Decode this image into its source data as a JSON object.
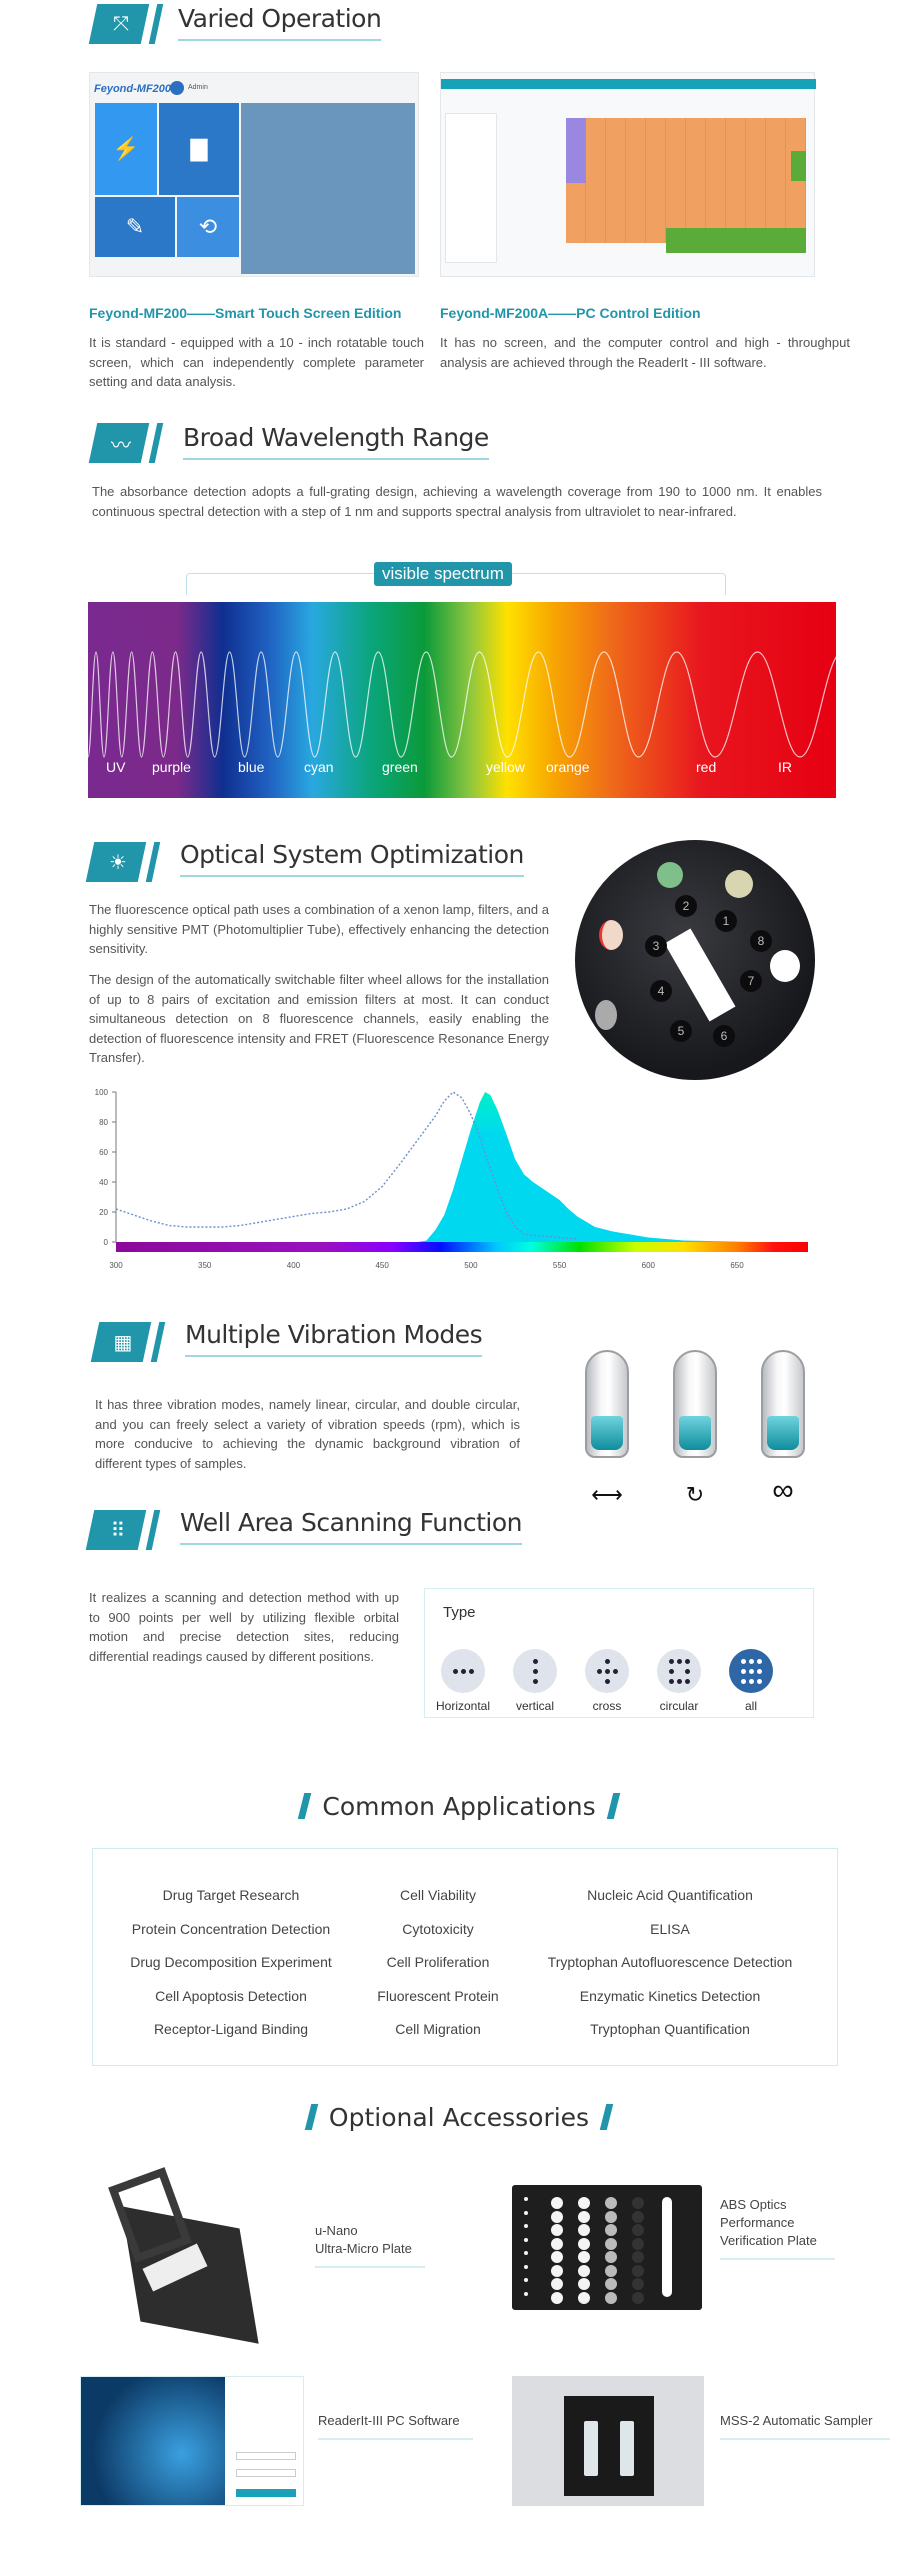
{
  "varied_operation": {
    "title": "Varied Operation",
    "icon": "expand-arrows-icon",
    "touch_screen": {
      "brand": "Feyond-MF200",
      "user": "Admin",
      "caption": "Feyond-MF200——Smart Touch Screen Edition",
      "description": "It is standard - equipped with a 10 - inch rotatable touch screen, which can independently complete parameter setting and data analysis."
    },
    "pc_control": {
      "caption": "Feyond-MF200A——PC Control Edition",
      "description": "It has no screen, and the computer control and high - throughput analysis are achieved through the ReaderIt - III software."
    }
  },
  "wavelength": {
    "title": "Broad Wavelength Range",
    "icon": "wave-icon",
    "description": "The absorbance detection adopts a full-grating design, achieving a wavelength coverage from 190 to 1000 nm. It enables continuous spectral detection with a step of 1 nm and supports spectral analysis from ultraviolet to near-infrared.",
    "visible_label": "visible spectrum",
    "bands": [
      "UV",
      "purple",
      "blue",
      "cyan",
      "green",
      "yellow",
      "orange",
      "red",
      "IR"
    ]
  },
  "optical": {
    "title": "Optical System Optimization",
    "icon": "lamp-icon",
    "paragraphs": [
      "The fluorescence optical path uses a combination of a xenon lamp, filters, and a highly sensitive PMT (Photomultiplier Tube), effectively enhancing the detection sensitivity.",
      "The design of the automatically switchable filter wheel allows for the installation of up to 8 pairs of excitation and emission filters at most. It can conduct simultaneous detection on 8 fluorescence channels, easily enabling the detection of fluorescence intensity and FRET (Fluorescence Resonance Energy Transfer)."
    ],
    "filter_numbers": [
      "1",
      "2",
      "3",
      "4",
      "5",
      "6",
      "7",
      "8"
    ]
  },
  "chart_data": {
    "type": "area",
    "xlim": [
      300,
      690
    ],
    "ylim": [
      0,
      100
    ],
    "xticks": [
      300,
      350,
      400,
      450,
      500,
      550,
      600,
      650
    ],
    "yticks": [
      0,
      20,
      40,
      60,
      80,
      100
    ],
    "grid": false,
    "series": [
      {
        "style": "dotted-line",
        "color": "#6a8fd0",
        "x": [
          300,
          310,
          320,
          330,
          340,
          350,
          360,
          370,
          380,
          390,
          400,
          410,
          420,
          430,
          440,
          450,
          460,
          470,
          480,
          485,
          490,
          495,
          500,
          505,
          510,
          515,
          520,
          525,
          530,
          540,
          550,
          560
        ],
        "y": [
          22,
          18,
          14,
          11,
          10,
          10,
          10,
          11,
          13,
          15,
          17,
          19,
          20,
          22,
          27,
          37,
          52,
          68,
          84,
          94,
          100,
          96,
          85,
          70,
          52,
          35,
          20,
          10,
          5,
          4,
          3,
          2
        ]
      },
      {
        "style": "filled-area",
        "color": "#00d8f0",
        "x": [
          470,
          475,
          480,
          485,
          490,
          495,
          500,
          505,
          508,
          511,
          515,
          520,
          525,
          530,
          535,
          540,
          545,
          550,
          555,
          560,
          570,
          580,
          600,
          620,
          640,
          660
        ],
        "y": [
          0,
          1,
          8,
          18,
          35,
          55,
          75,
          93,
          100,
          98,
          88,
          72,
          55,
          45,
          40,
          36,
          32,
          28,
          22,
          17,
          10,
          7,
          3,
          1,
          0.5,
          0
        ]
      }
    ]
  },
  "vibration": {
    "title": "Multiple Vibration Modes",
    "icon": "shaking-plate-icon",
    "description": "It has three vibration modes, namely linear, circular, and double circular, and you can freely select a variety of vibration speeds (rpm), which is more conducive to achieving the dynamic background vibration of different types of samples.",
    "modes": [
      {
        "icon": "linear-arrow-icon",
        "glyph": "⟷"
      },
      {
        "icon": "circular-arrow-icon",
        "glyph": "↻"
      },
      {
        "icon": "infinity-icon",
        "glyph": "∞"
      }
    ]
  },
  "scanning": {
    "title": "Well Area Scanning Function",
    "icon": "well-dots-icon",
    "description": "It realizes a scanning and detection method with up to 900 points per well by utilizing flexible orbital motion and precise detection sites, reducing differential readings caused by different positions.",
    "type_label": "Type",
    "types": [
      "Horizontal",
      "vertical",
      "cross",
      "circular",
      "all"
    ],
    "selected_type": "all"
  },
  "applications": {
    "title": "Common Applications",
    "items": [
      "Drug Target Research",
      "Cell Viability",
      "Nucleic Acid Quantification",
      "Protein Concentration Detection",
      "Cytotoxicity",
      "ELISA",
      "Drug Decomposition Experiment",
      "Cell Proliferation",
      "Tryptophan Autofluorescence Detection",
      "Cell Apoptosis Detection",
      "Fluorescent Protein",
      "Enzymatic Kinetics Detection",
      "Receptor-Ligand Binding",
      "Cell Migration",
      "Tryptophan Quantification"
    ]
  },
  "accessories": {
    "title": "Optional Accessories",
    "items": [
      {
        "line1": "u-Nano",
        "line2": "Ultra-Micro Plate"
      },
      {
        "line1": "ABS Optics",
        "line2": "Performance",
        "line3": "Verification Plate"
      },
      {
        "line1": "ReaderIt-III PC Software"
      },
      {
        "line1": "MSS-2 Automatic Sampler"
      }
    ]
  },
  "colors": {
    "accent": "#2196aa",
    "underline": "#9fd6df",
    "selected_type": "#2f67a6"
  }
}
